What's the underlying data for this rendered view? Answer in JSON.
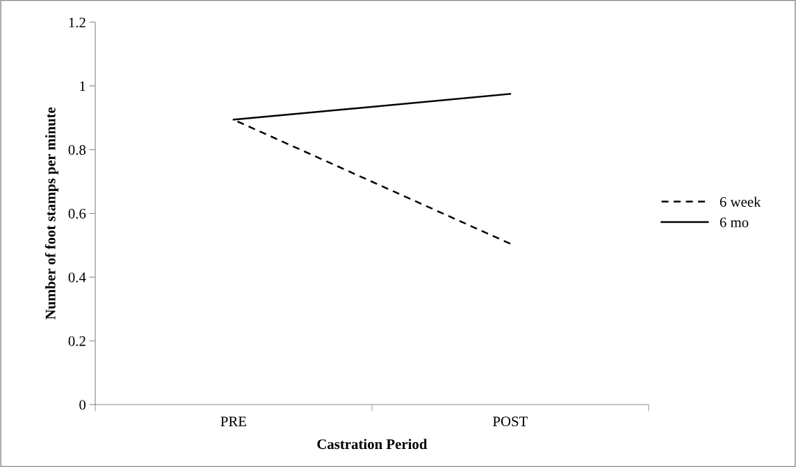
{
  "chart_data": {
    "type": "line",
    "xlabel": "Castration Period",
    "ylabel": "Number of foot stamps per minute",
    "categories": [
      "PRE",
      "POST"
    ],
    "series": [
      {
        "name": "6 week",
        "color": "#000000",
        "values": [
          0.894,
          0.505
        ],
        "line_style": "dashed"
      },
      {
        "name": "6 mo",
        "color": "#000000",
        "values": [
          0.894,
          0.975
        ],
        "line_style": "solid"
      }
    ],
    "ylim": [
      0,
      1.2
    ],
    "yticks": [
      0,
      0.2,
      0.4,
      0.6,
      0.8,
      1,
      1.2
    ],
    "grid": false,
    "legend": "right",
    "marker": "none"
  }
}
